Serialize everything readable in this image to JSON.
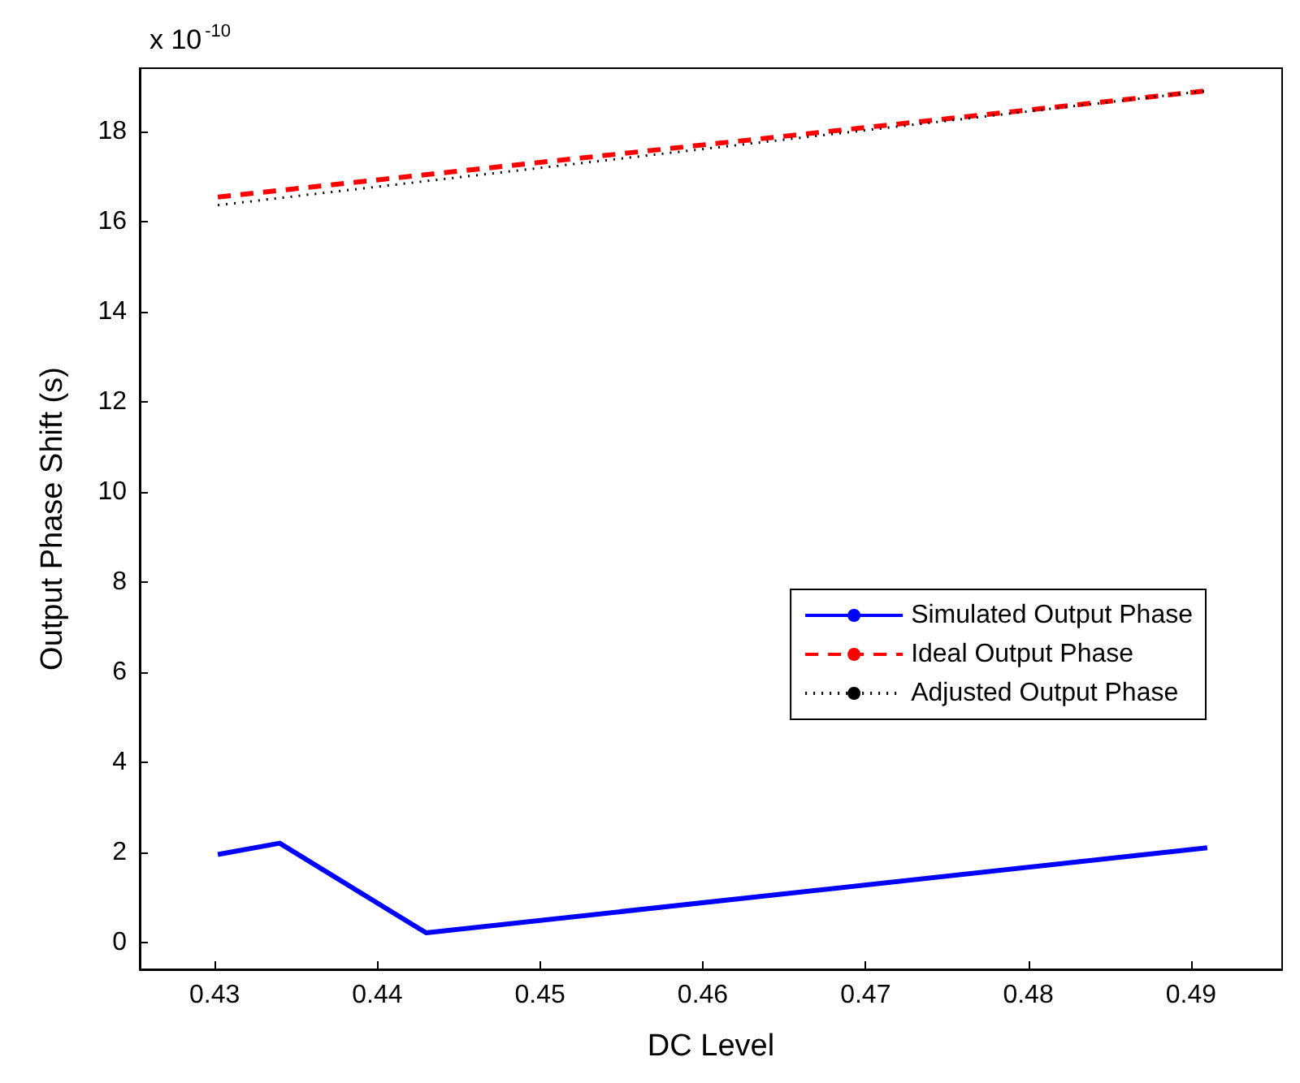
{
  "chart_data": {
    "type": "line",
    "xlabel": "DC Level",
    "ylabel": "Output Phase Shift (s)",
    "annotations": [
      "x 10$^{-10}$"
    ],
    "xlim": [
      0.4254,
      0.4956
    ],
    "xticks": [
      0.43,
      0.44,
      0.45,
      0.46,
      0.47,
      0.48,
      0.49
    ],
    "ylim": [
      -0.6,
      19.4
    ],
    "yticks": [
      0,
      2,
      4,
      6,
      8,
      10,
      12,
      14,
      16,
      18
    ],
    "grid": false,
    "legend": "right",
    "marker": "none",
    "series": [
      {
        "name": "Simulated Output Phase",
        "color": "#0000ff",
        "line_style": "solid",
        "x": [
          0.4302,
          0.434,
          0.443,
          0.491
        ],
        "values": [
          1.95,
          2.2,
          0.21,
          2.1
        ]
      },
      {
        "name": "Ideal Output Phase",
        "color": "#ff0000",
        "line_style": "dashed",
        "x": [
          0.4302,
          0.491
        ],
        "values": [
          16.54,
          18.9
        ]
      },
      {
        "name": "Adjusted Output Phase",
        "color": "#000000",
        "line_style": "dotted",
        "x": [
          0.4302,
          0.491
        ],
        "values": [
          16.36,
          18.9
        ]
      }
    ]
  }
}
